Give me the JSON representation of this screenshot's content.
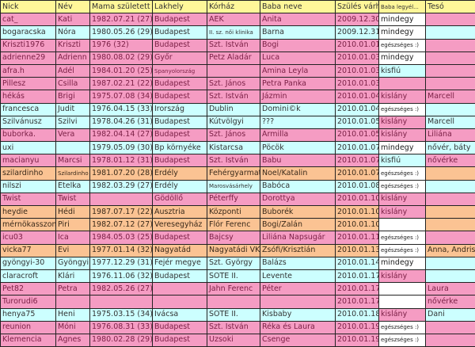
{
  "headers": [
    "Nick",
    "Név",
    "Mama született",
    "Lakhely",
    "Kórház",
    "Baba neve",
    "Szülés várha",
    "Baba legyél...",
    "Tesó"
  ],
  "colors": {
    "pink": "#f59cc3",
    "cyan": "#ccffff",
    "orange": "#fbc393",
    "header": "#fff799",
    "white": "#ffffff"
  },
  "rows": [
    {
      "color": "pink",
      "baba_color": "white",
      "cells": [
        "cat_",
        "Kati",
        "1982.07.21 (27)",
        "Budapest",
        "AEK",
        "Anita",
        "2009.12.30",
        "mindegy",
        ""
      ]
    },
    {
      "color": "cyan",
      "baba_color": "white",
      "cells": [
        "bogaracska",
        "Nóra",
        "1980.05.26 (29)",
        "Budapest",
        "II. sz. női klinika",
        "Barna",
        "2009.12.31",
        "mindegy",
        ""
      ]
    },
    {
      "color": "pink",
      "baba_color": "white",
      "cells": [
        "Kriszti1976",
        "Kriszti",
        "1976 (32)",
        "Budapest",
        "Szt. István",
        "Bogi",
        "2010.01.01",
        "egészséges :)",
        ""
      ]
    },
    {
      "color": "pink",
      "baba_color": "white",
      "cells": [
        "adrienne29",
        "Adrienn",
        "1980.08.02 (29)",
        "Győr",
        "Petz Aladár",
        "Luca",
        "2010.01.03",
        "mindegy",
        ""
      ]
    },
    {
      "color": "pink",
      "baba_color": "cyan",
      "cells": [
        "afra.h",
        "Adél",
        "1984.01.20 (25)",
        "Spanyolország",
        "",
        "Amina Leyla",
        "2010.01.03",
        "kisfiú",
        ""
      ]
    },
    {
      "color": "pink",
      "baba_color": "pink",
      "cells": [
        "Pillesz",
        "Csilla",
        "1987.02.21 (22)",
        "Budapest",
        "Szt. János",
        "Petra Panka",
        "2010.01.03",
        "",
        ""
      ]
    },
    {
      "color": "pink",
      "baba_color": "pink",
      "cells": [
        "hékás",
        "Brigi",
        "1975.07.08 (34)",
        "Budapest",
        "Szt. István",
        "Jázmin",
        "2010.01.04",
        "kislány",
        "Marcell"
      ]
    },
    {
      "color": "cyan",
      "baba_color": "white",
      "cells": [
        "francesca",
        "Judit",
        "1976.04.15 (33)",
        "Irország",
        "Dublin",
        "Domini©k",
        "2010.01.04",
        "egészséges :)",
        ""
      ]
    },
    {
      "color": "cyan",
      "baba_color": "pink",
      "cells": [
        "Szilvánusz",
        "Szilvi",
        "1978.04.26 (31)",
        "Budapest",
        "Kútvölgyi",
        "???",
        "2010.01.05",
        "kislány",
        "Marcell"
      ]
    },
    {
      "color": "pink",
      "baba_color": "pink",
      "cells": [
        "buborka.",
        "Vera",
        "1982.04.14 (27)",
        "Budapest",
        "Szt. János",
        "Armilla",
        "2010.01.05",
        "kislány",
        "Liliána"
      ]
    },
    {
      "color": "cyan",
      "baba_color": "white",
      "cells": [
        "uxi",
        "",
        "1979.05.09 (30)",
        "Bp környéke",
        "Kistarcsa",
        "Pöcök",
        "2010.01.07",
        "mindegy",
        "nővér, báty"
      ]
    },
    {
      "color": "pink",
      "baba_color": "cyan",
      "cells": [
        "macianyu",
        "Marcsi",
        "1978.01.12 (31)",
        "Budapest",
        "Szt. István",
        "Babu",
        "2010.01.07",
        "kisfiú",
        "nővérke"
      ]
    },
    {
      "color": "orange",
      "baba_color": "white",
      "cells": [
        "szilardinho",
        "Szilardinho",
        "1981.07.20 (28)",
        "Erdély",
        "Fehérgyarmat",
        "Noel/Katalin",
        "2010.01.07",
        "egészséges :)",
        ""
      ]
    },
    {
      "color": "cyan",
      "baba_color": "white",
      "cells": [
        "nilszi",
        "Etelka",
        "1982.03.29 (27)",
        "Erdély",
        "Marosvásárhely",
        "Babóca",
        "2010.01.08",
        "egészséges :)",
        ""
      ]
    },
    {
      "color": "pink",
      "baba_color": "pink",
      "cells": [
        "Twist",
        "Twist",
        "",
        "Gödöllő",
        "Péterffy",
        "Dorottya",
        "2010.01.10",
        "kislány",
        ""
      ]
    },
    {
      "color": "orange",
      "baba_color": "pink",
      "cells": [
        "heydie",
        "Hédi",
        "1987.07.17 (22)",
        "Ausztria",
        "Központi",
        "Buborék",
        "2010.01.10",
        "kislány",
        ""
      ]
    },
    {
      "color": "orange",
      "baba_color": "white",
      "cells": [
        "mérnökasszony",
        "Piri",
        "1982.07.12 (27)",
        "Veresegyház",
        "Flór Ferenc",
        "Bogi/Zalán",
        "2010.01.10",
        "",
        ""
      ]
    },
    {
      "color": "pink",
      "baba_color": "white",
      "cells": [
        "icu03",
        "Ica",
        "1984.05.03 (25)",
        "Budapest",
        "Bajcsy",
        "Liliána Napsugár",
        "2010.01.11",
        "egészséges :)",
        ""
      ]
    },
    {
      "color": "orange",
      "baba_color": "white",
      "cells": [
        "vicka77",
        "Evi",
        "1977.01.14 (32)",
        "Nagyatád",
        "Nagyatádi VK",
        "Zsófi/Krisztián",
        "2010.01.13",
        "egészséges :)",
        "Anna, Andris"
      ]
    },
    {
      "color": "cyan",
      "baba_color": "white",
      "cells": [
        "gyöngyi-30",
        "Gyöngyi",
        "1977.12.29 (31)",
        "Fejér megye",
        "Szt. György",
        "Balázs",
        "2010.01.14",
        "mindegy",
        ""
      ]
    },
    {
      "color": "cyan",
      "baba_color": "pink",
      "cells": [
        "claracroft",
        "Klári",
        "1976.11.06 (32)",
        "Budapest",
        "SOTE II.",
        "Levente",
        "2010.01.17",
        "kislány",
        ""
      ]
    },
    {
      "color": "pink",
      "baba_color": "white",
      "cells": [
        "Pet82",
        "Petra",
        "1982.05.26 (27)",
        "",
        "Jahn Ferenc",
        "Péter",
        "2010.01.17",
        "",
        "Laura"
      ]
    },
    {
      "color": "pink",
      "baba_color": "white",
      "cells": [
        "Turorudi6",
        "",
        "",
        "",
        "",
        "",
        "2010.01.17",
        "",
        "nővérke"
      ]
    },
    {
      "color": "cyan",
      "baba_color": "pink",
      "cells": [
        "henya75",
        "Heni",
        "1975.03.15 (34)",
        "Ivácsa",
        "SOTE II.",
        "Kisbaby",
        "2010.01.18",
        "kislány",
        "Dani"
      ]
    },
    {
      "color": "pink",
      "baba_color": "white",
      "cells": [
        "reunion",
        "Móni",
        "1976.08.31 (33)",
        "Budapest",
        "Szt. István",
        "Réka és Laura",
        "2010.01.19",
        "egészséges :)",
        ""
      ]
    },
    {
      "color": "pink",
      "baba_color": "white",
      "cells": [
        "Klemencia",
        "Agnes",
        "1980.02.28 (29)",
        "Budapest",
        "Uzsoki",
        "Csenge",
        "2010.01.19",
        "egészséges :)",
        ""
      ]
    }
  ]
}
